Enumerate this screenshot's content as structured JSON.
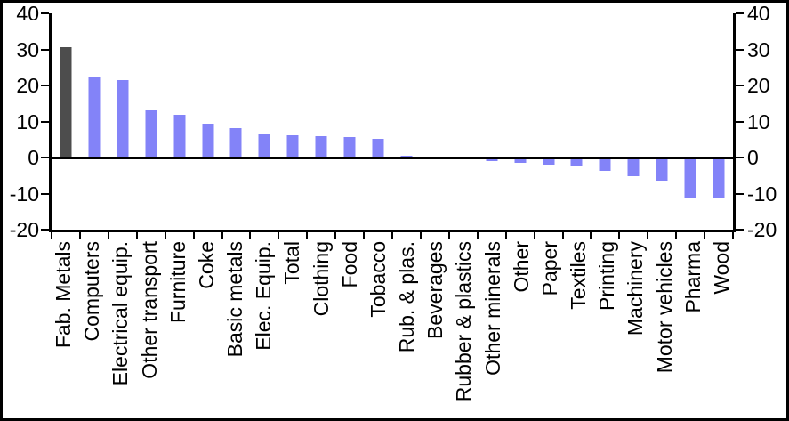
{
  "chart_data": {
    "type": "bar",
    "title": "",
    "categories": [
      "Fab. Metals",
      "Computers",
      "Electrical equip.",
      "Other transport",
      "Furniture",
      "Coke",
      "Basic metals",
      "Elec. Equip.",
      "Total",
      "Clothing",
      "Food",
      "Tobacco",
      "Rub. & plas.",
      "Beverages",
      "Rubber & plastics",
      "Other minerals",
      "Other",
      "Paper",
      "Textiles",
      "Printing",
      "Machinery",
      "Motor vehicles",
      "Pharma",
      "Wood"
    ],
    "values": [
      30.5,
      22.3,
      21.6,
      13.0,
      11.8,
      9.4,
      8.2,
      6.6,
      6.2,
      6.0,
      5.7,
      5.1,
      0.5,
      0,
      0,
      -1.1,
      -1.6,
      -2.0,
      -2.2,
      -3.7,
      -5.1,
      -6.4,
      -11.2,
      -11.4
    ],
    "bar_color": "#8383F8",
    "highlight": {
      "category": "Fab. Metals",
      "index": 0,
      "color": "#4D4D4D"
    },
    "ylim": [
      -20,
      40
    ],
    "yticks": [
      40,
      30,
      20,
      10,
      0,
      -10,
      -20
    ],
    "ylabel": "",
    "xlabel": "",
    "grid": false,
    "legend": false,
    "dual_axis": true,
    "axis_color": "#000000",
    "background_color": "#FFFFFF",
    "x_label_rotation_deg": 90
  }
}
